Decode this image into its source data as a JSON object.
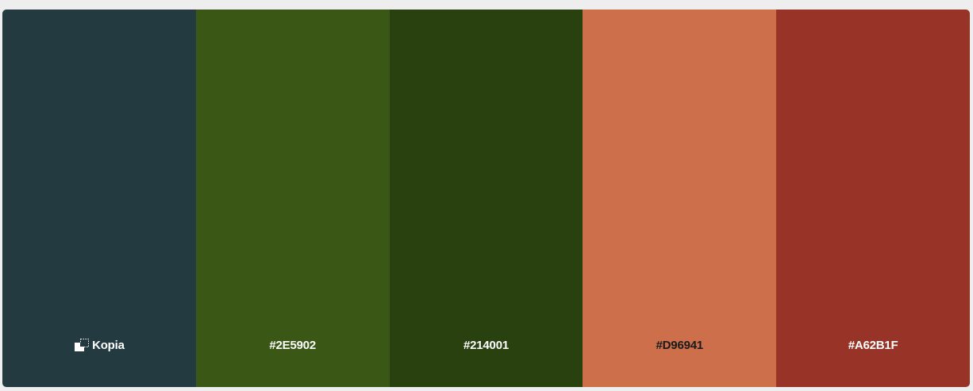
{
  "palette": {
    "swatches": [
      {
        "color": "#233A40",
        "text_color": "#ffffff",
        "label": "Kopia",
        "icon": "copy-icon"
      },
      {
        "color": "#3B5715",
        "text_color": "#ffffff",
        "label": "#2E5902"
      },
      {
        "color": "#28410F",
        "text_color": "#ffffff",
        "label": "#214001"
      },
      {
        "color": "#CC6F4A",
        "text_color": "#1a1a1a",
        "label": "#D96941"
      },
      {
        "color": "#973427",
        "text_color": "#ffffff",
        "label": "#A62B1F"
      }
    ]
  }
}
